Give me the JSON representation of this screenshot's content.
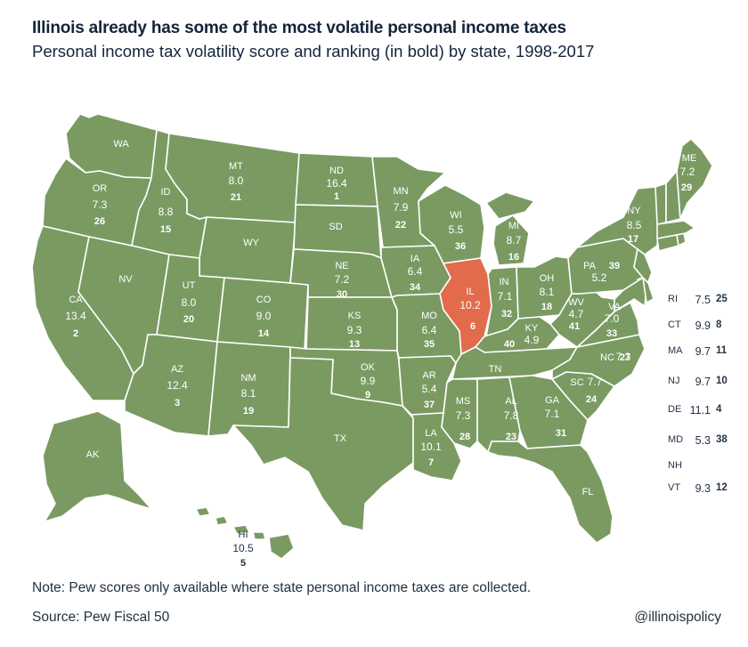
{
  "title": "Illinois already has some of the most volatile personal income taxes",
  "subtitle": "Personal income tax volatility score and ranking (in bold) by state, 1998-2017",
  "colors": {
    "state": "#7a9a62",
    "highlight": "#e26b4c",
    "border": "#ffffff",
    "text": "#1c2b3a"
  },
  "states": {
    "WA": {
      "abbr": "WA",
      "score": "",
      "rank": ""
    },
    "OR": {
      "abbr": "OR",
      "score": "7.3",
      "rank": "26"
    },
    "CA": {
      "abbr": "CA",
      "score": "13.4",
      "rank": "2"
    },
    "ID": {
      "abbr": "ID",
      "score": "8.8",
      "rank": "15"
    },
    "NV": {
      "abbr": "NV",
      "score": "",
      "rank": ""
    },
    "MT": {
      "abbr": "MT",
      "score": "8.0",
      "rank": "21"
    },
    "WY": {
      "abbr": "WY",
      "score": "",
      "rank": ""
    },
    "UT": {
      "abbr": "UT",
      "score": "8.0",
      "rank": "20"
    },
    "AZ": {
      "abbr": "AZ",
      "score": "12.4",
      "rank": "3"
    },
    "CO": {
      "abbr": "CO",
      "score": "9.0",
      "rank": "14"
    },
    "NM": {
      "abbr": "NM",
      "score": "8.1",
      "rank": "19"
    },
    "ND": {
      "abbr": "ND",
      "score": "16.4",
      "rank": "1"
    },
    "SD": {
      "abbr": "SD",
      "score": "",
      "rank": ""
    },
    "NE": {
      "abbr": "NE",
      "score": "7.2",
      "rank": "30"
    },
    "KS": {
      "abbr": "KS",
      "score": "9.3",
      "rank": "13"
    },
    "OK": {
      "abbr": "OK",
      "score": "9.9",
      "rank": "9"
    },
    "TX": {
      "abbr": "TX",
      "score": "",
      "rank": ""
    },
    "MN": {
      "abbr": "MN",
      "score": "7.9",
      "rank": "22"
    },
    "IA": {
      "abbr": "IA",
      "score": "6.4",
      "rank": "34"
    },
    "MO": {
      "abbr": "MO",
      "score": "6.4",
      "rank": "35"
    },
    "AR": {
      "abbr": "AR",
      "score": "5.4",
      "rank": "37"
    },
    "LA": {
      "abbr": "LA",
      "score": "10.1",
      "rank": "7"
    },
    "WI": {
      "abbr": "WI",
      "score": "5.5",
      "rank": "36"
    },
    "IL": {
      "abbr": "IL",
      "score": "10.2",
      "rank": "6"
    },
    "MI": {
      "abbr": "MI",
      "score": "8.7",
      "rank": "16"
    },
    "IN": {
      "abbr": "IN",
      "score": "7.1",
      "rank": "32"
    },
    "OH": {
      "abbr": "OH",
      "score": "8.1",
      "rank": "18"
    },
    "KY": {
      "abbr": "KY",
      "score": "4.9",
      "rank": "40"
    },
    "TN": {
      "abbr": "TN",
      "score": "",
      "rank": ""
    },
    "MS": {
      "abbr": "MS",
      "score": "7.3",
      "rank": "28"
    },
    "AL": {
      "abbr": "AL",
      "score": "7.8",
      "rank": "23"
    },
    "GA": {
      "abbr": "GA",
      "score": "7.1",
      "rank": "31"
    },
    "FL": {
      "abbr": "FL",
      "score": "",
      "rank": ""
    },
    "SC": {
      "abbr": "SC",
      "score": "7.7",
      "rank": "24"
    },
    "NC": {
      "abbr": "NC",
      "score": "7.3",
      "rank": "27"
    },
    "VA": {
      "abbr": "VA",
      "score": "7.0",
      "rank": "33"
    },
    "WV": {
      "abbr": "WV",
      "score": "4.7",
      "rank": "41"
    },
    "PA": {
      "abbr": "PA",
      "score": "5.2",
      "rank": "39"
    },
    "NY": {
      "abbr": "NY",
      "score": "8.5",
      "rank": "17"
    },
    "ME": {
      "abbr": "ME",
      "score": "7.2",
      "rank": "29"
    },
    "AK": {
      "abbr": "AK",
      "score": "",
      "rank": ""
    },
    "HI": {
      "abbr": "HI",
      "score": "10.5",
      "rank": "5"
    }
  },
  "northeast_list": [
    {
      "abbr": "RI",
      "score": "7.5",
      "rank": "25"
    },
    {
      "abbr": "CT",
      "score": "9.9",
      "rank": "8"
    },
    {
      "abbr": "MA",
      "score": "9.7",
      "rank": "11"
    },
    {
      "abbr": "NJ",
      "score": "9.7",
      "rank": "10"
    },
    {
      "abbr": "DE",
      "score": "11.1",
      "rank": "4"
    },
    {
      "abbr": "MD",
      "score": "5.3",
      "rank": "38"
    },
    {
      "abbr": "NH",
      "score": "",
      "rank": ""
    },
    {
      "abbr": "VT",
      "score": "9.3",
      "rank": "12"
    }
  ],
  "note": "Note: Pew scores only available where state personal income taxes are collected.",
  "source": "Source: Pew Fiscal 50",
  "handle": "@illinoispolicy"
}
